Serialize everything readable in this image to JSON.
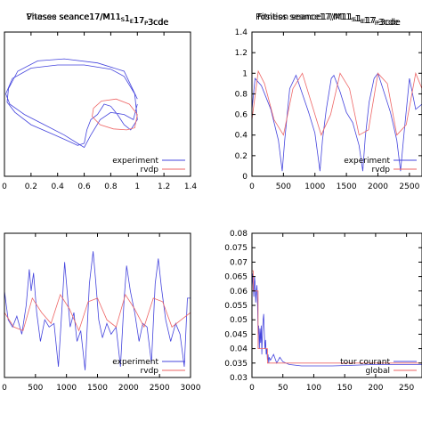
{
  "chart_data": [
    {
      "type": "line",
      "title": "Phases seance17/M1",
      "title_subs": [
        "S",
        "E",
        "P"
      ],
      "title_parts": [
        "1",
        "1",
        "17",
        "3cde"
      ],
      "xlabel": "",
      "ylabel": "",
      "xlim": [
        0,
        1.4
      ],
      "ylim": [
        0,
        1.4
      ],
      "xticks": [
        "0",
        "0.2",
        "0.4",
        "0.6",
        "0.8",
        "1",
        "1.2",
        "1.4"
      ],
      "yticks": [],
      "legend": "bottom-right",
      "grid": false,
      "series": [
        {
          "name": "experiment",
          "color": "#4444dd",
          "x": [
            1.0,
            0.9,
            0.7,
            0.45,
            0.25,
            0.1,
            0.03,
            0.02,
            0.08,
            0.2,
            0.38,
            0.5,
            0.55,
            0.6,
            0.62,
            0.65,
            0.7,
            0.75,
            0.8,
            0.85,
            0.9,
            0.95,
            1.0,
            0.98,
            0.9,
            0.8,
            0.6,
            0.4,
            0.2,
            0.06,
            0.01,
            0.04,
            0.15,
            0.3,
            0.45,
            0.55,
            0.6,
            0.65,
            0.72,
            0.8,
            0.9,
            0.97,
            1.0
          ],
          "y": [
            0.75,
            1.02,
            1.1,
            1.14,
            1.12,
            1.02,
            0.85,
            0.72,
            0.62,
            0.5,
            0.4,
            0.33,
            0.3,
            0.32,
            0.45,
            0.55,
            0.6,
            0.7,
            0.68,
            0.6,
            0.5,
            0.45,
            0.55,
            0.8,
            0.97,
            1.04,
            1.08,
            1.08,
            1.05,
            0.95,
            0.8,
            0.7,
            0.6,
            0.5,
            0.4,
            0.32,
            0.28,
            0.4,
            0.55,
            0.62,
            0.6,
            0.55,
            0.7
          ]
        },
        {
          "name": "rvdp",
          "color": "#ee6666",
          "x": [
            1.0,
            0.98,
            0.92,
            0.82,
            0.72,
            0.66,
            0.67,
            0.73,
            0.84,
            0.94,
            1.0
          ],
          "y": [
            0.6,
            0.47,
            0.45,
            0.46,
            0.5,
            0.58,
            0.66,
            0.73,
            0.75,
            0.7,
            0.6
          ]
        }
      ]
    },
    {
      "type": "line",
      "title": "Position seance17/M1",
      "title_subs": [
        "S",
        "E",
        "P"
      ],
      "title_parts": [
        "1",
        "1",
        "17",
        "3cde"
      ],
      "xlabel": "",
      "ylabel": "",
      "xlim": [
        0,
        2700
      ],
      "ylim": [
        0,
        1.4
      ],
      "xticks": [
        "0",
        "500",
        "1000",
        "1500",
        "2000",
        "2500"
      ],
      "yticks": [
        "0",
        "0.2",
        "0.4",
        "0.6",
        "0.8",
        "1",
        "1.2",
        "1.4"
      ],
      "legend": "bottom-right",
      "grid": false,
      "series": [
        {
          "name": "experiment",
          "color": "#4444dd",
          "x": [
            0,
            50,
            150,
            300,
            420,
            480,
            520,
            600,
            700,
            800,
            900,
            1000,
            1080,
            1120,
            1180,
            1260,
            1300,
            1400,
            1500,
            1600,
            1700,
            1760,
            1800,
            1860,
            1940,
            2000,
            2080,
            2200,
            2300,
            2360,
            2420,
            2500,
            2600,
            2700
          ],
          "y": [
            0.65,
            0.95,
            0.88,
            0.65,
            0.35,
            0.05,
            0.35,
            0.85,
            0.98,
            0.8,
            0.62,
            0.42,
            0.05,
            0.35,
            0.65,
            0.95,
            0.98,
            0.82,
            0.62,
            0.52,
            0.3,
            0.05,
            0.38,
            0.72,
            0.95,
            1.0,
            0.85,
            0.62,
            0.35,
            0.05,
            0.45,
            0.95,
            0.65,
            0.7
          ]
        },
        {
          "name": "rvdp",
          "color": "#ee6666",
          "x": [
            0,
            100,
            200,
            350,
            500,
            650,
            800,
            950,
            1100,
            1250,
            1400,
            1550,
            1700,
            1850,
            2000,
            2150,
            2300,
            2450,
            2600,
            2700
          ],
          "y": [
            0.55,
            1.02,
            0.9,
            0.55,
            0.4,
            0.85,
            1.0,
            0.7,
            0.4,
            0.6,
            1.0,
            0.85,
            0.4,
            0.45,
            1.0,
            0.9,
            0.4,
            0.5,
            1.0,
            0.85
          ]
        }
      ]
    },
    {
      "type": "line",
      "title": "Vitesse seance17/M1",
      "title_subs": [
        "S",
        "E",
        "P"
      ],
      "title_parts": [
        "1",
        "1",
        "17",
        "3cde"
      ],
      "xlabel": "",
      "ylabel": "",
      "xlim": [
        0,
        3000
      ],
      "ylim": [
        -1,
        1
      ],
      "xticks": [
        "0",
        "500",
        "1000",
        "1500",
        "2000",
        "2500",
        "3000"
      ],
      "yticks": [],
      "legend": "bottom-right",
      "grid": false,
      "series": [
        {
          "name": "experiment",
          "color": "#4444dd",
          "x": [
            0,
            60,
            130,
            200,
            280,
            350,
            400,
            430,
            470,
            520,
            580,
            650,
            720,
            800,
            870,
            930,
            970,
            1000,
            1060,
            1120,
            1170,
            1230,
            1300,
            1370,
            1430,
            1470,
            1520,
            1580,
            1650,
            1720,
            1800,
            1870,
            1930,
            1970,
            2030,
            2100,
            2170,
            2230,
            2300,
            2370,
            2430,
            2480,
            2530,
            2600,
            2680,
            2760,
            2830,
            2900,
            2950,
            3000
          ],
          "y": [
            0.2,
            -0.2,
            -0.3,
            -0.15,
            -0.4,
            0.0,
            0.5,
            0.2,
            0.45,
            -0.1,
            -0.5,
            -0.2,
            -0.3,
            -0.25,
            -0.85,
            0.0,
            0.6,
            0.3,
            -0.3,
            -0.1,
            -0.5,
            -0.35,
            -0.9,
            0.3,
            0.75,
            0.35,
            -0.2,
            -0.45,
            -0.25,
            -0.4,
            -0.3,
            -0.85,
            0.1,
            0.55,
            0.2,
            -0.1,
            -0.5,
            -0.25,
            -0.3,
            -0.8,
            0.3,
            0.65,
            0.25,
            -0.2,
            -0.5,
            -0.25,
            -0.4,
            -0.85,
            0.1,
            0.1
          ]
        },
        {
          "name": "rvdp",
          "color": "#ee6666",
          "x": [
            0,
            150,
            300,
            450,
            600,
            750,
            900,
            1050,
            1200,
            1350,
            1500,
            1650,
            1800,
            1950,
            2100,
            2250,
            2400,
            2550,
            2700,
            2850,
            3000
          ],
          "y": [
            -0.1,
            -0.3,
            -0.35,
            0.1,
            -0.1,
            -0.25,
            0.15,
            -0.05,
            -0.35,
            0.05,
            0.1,
            -0.2,
            -0.3,
            0.15,
            -0.05,
            -0.3,
            0.1,
            0.05,
            -0.3,
            -0.2,
            -0.1
          ]
        }
      ]
    },
    {
      "type": "line",
      "title": "Fitness seance17/M1",
      "title_subs": [
        "S",
        "E",
        "P"
      ],
      "title_parts": [
        "1",
        "1",
        "17",
        "3cde"
      ],
      "xlabel": "",
      "ylabel": "",
      "xlim": [
        0,
        275
      ],
      "ylim": [
        0.03,
        0.08
      ],
      "xticks": [
        "0",
        "50",
        "100",
        "150",
        "200",
        "250"
      ],
      "yticks": [
        "0.03",
        "0.035",
        "0.04",
        "0.045",
        "0.05",
        "0.055",
        "0.06",
        "0.065",
        "0.07",
        "0.075",
        "0.08"
      ],
      "legend": "bottom-right",
      "grid": false,
      "series": [
        {
          "name": "tour courant",
          "color": "#4444dd",
          "x": [
            0,
            1,
            2,
            3,
            4,
            5,
            6,
            7,
            8,
            9,
            10,
            11,
            12,
            13,
            14,
            15,
            16,
            17,
            18,
            19,
            20,
            21,
            22,
            23,
            24,
            25,
            26,
            27,
            28,
            30,
            35,
            40,
            45,
            50,
            60,
            80,
            100,
            130,
            160,
            200,
            240,
            275
          ],
          "y": [
            0.06,
            0.066,
            0.062,
            0.058,
            0.065,
            0.063,
            0.056,
            0.06,
            0.062,
            0.055,
            0.045,
            0.048,
            0.04,
            0.047,
            0.042,
            0.048,
            0.038,
            0.046,
            0.05,
            0.052,
            0.045,
            0.04,
            0.043,
            0.038,
            0.04,
            0.036,
            0.038,
            0.035,
            0.037,
            0.036,
            0.038,
            0.035,
            0.037,
            0.0355,
            0.0345,
            0.034,
            0.034,
            0.034,
            0.0342,
            0.0345,
            0.0345,
            0.0345
          ]
        },
        {
          "name": "global",
          "color": "#ee6666",
          "x": [
            0,
            2,
            2,
            10,
            10,
            25,
            25,
            275
          ],
          "y": [
            0.067,
            0.067,
            0.06,
            0.06,
            0.04,
            0.04,
            0.035,
            0.035
          ]
        }
      ]
    }
  ]
}
